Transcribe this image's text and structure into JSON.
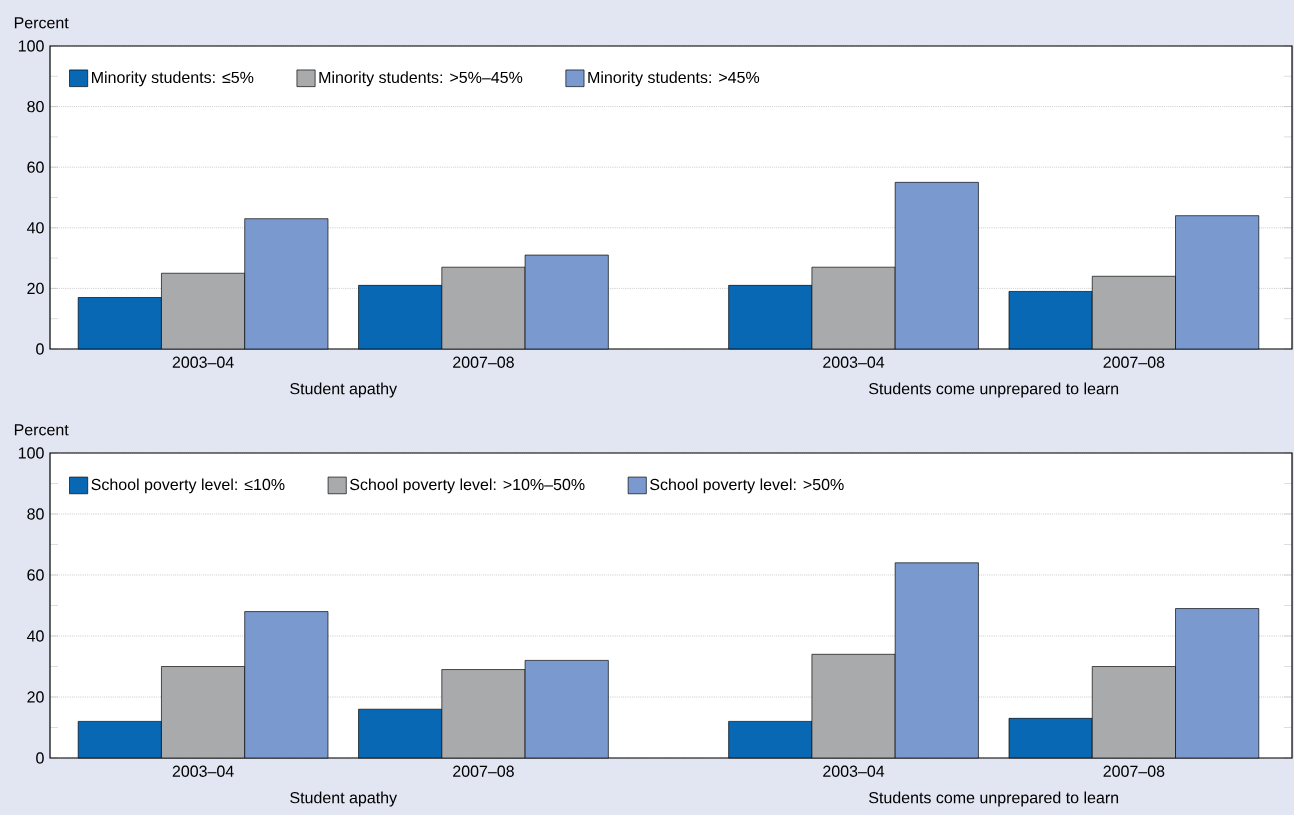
{
  "chart_data": [
    {
      "type": "bar",
      "ylabel": "Percent",
      "categories": [
        "2003–04",
        "2007–08",
        "2003–04",
        "2007–08"
      ],
      "annotations": [
        "Student apathy",
        "Students come unprepared to learn"
      ],
      "series": [
        {
          "name": "Minority students: ≤5%",
          "color": "#0868b4",
          "values": [
            17,
            21,
            21,
            19
          ]
        },
        {
          "name": "Minority students: >5%–45%",
          "color": "#a9aaac",
          "values": [
            25,
            27,
            27,
            24
          ]
        },
        {
          "name": "Minority students: >45%",
          "color": "#7a9acf",
          "values": [
            43,
            31,
            55,
            44
          ]
        }
      ],
      "ylim": [
        0,
        100
      ],
      "yticks": [
        0,
        {
          "value": 10,
          "label": null
        },
        20,
        {
          "value": 30,
          "label": null
        },
        40,
        {
          "value": 50,
          "label": null
        },
        60,
        {
          "value": 70,
          "label": null
        },
        80,
        {
          "value": 90,
          "label": null
        },
        100
      ],
      "grid": "y",
      "legend": "top left"
    },
    {
      "type": "bar",
      "ylabel": "Percent",
      "categories": [
        "2003–04",
        "2007–08",
        "2003–04",
        "2007–08"
      ],
      "annotations": [
        "Student apathy",
        "Students come unprepared to learn"
      ],
      "series": [
        {
          "name": "School poverty level: ≤10%",
          "color": "#0868b4",
          "values": [
            12,
            16,
            12,
            13
          ]
        },
        {
          "name": "School poverty level: >10%–50%",
          "color": "#a9aaac",
          "values": [
            30,
            29,
            34,
            30
          ]
        },
        {
          "name": "School poverty level: >50%",
          "color": "#7a9acf",
          "values": [
            48,
            32,
            64,
            49
          ]
        }
      ],
      "ylim": [
        0,
        100
      ],
      "yticks": [
        0,
        {
          "value": 10,
          "label": null
        },
        20,
        {
          "value": 30,
          "label": null
        },
        40,
        {
          "value": 50,
          "label": null
        },
        60,
        {
          "value": 70,
          "label": null
        },
        80,
        {
          "value": 90,
          "label": null
        },
        100
      ],
      "grid": "y",
      "legend": "top left"
    }
  ]
}
